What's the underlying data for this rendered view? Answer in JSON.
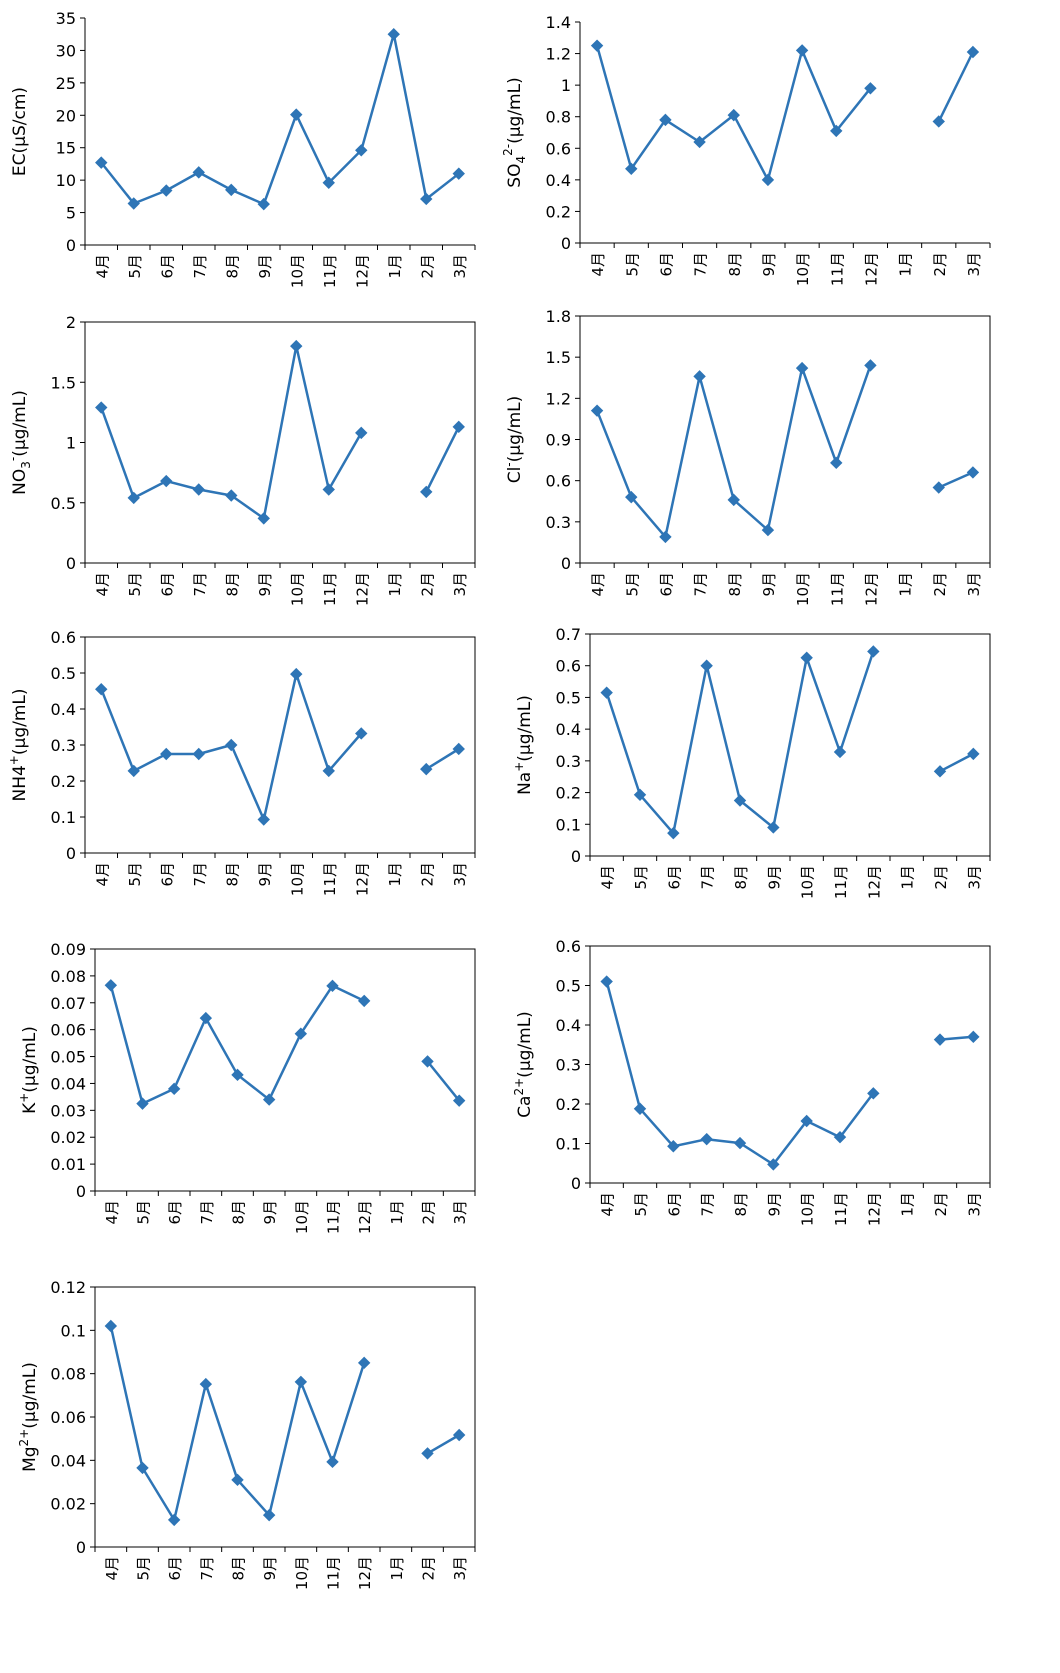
{
  "months": [
    "4月",
    "5月",
    "6月",
    "7月",
    "8月",
    "9月",
    "10月",
    "11月",
    "12月",
    "1月",
    "2月",
    "3月"
  ],
  "colors": {
    "series": "#2e75b6"
  },
  "chart_data": [
    {
      "id": "ec",
      "type": "line",
      "ylabel": {
        "main": "EC(μS/cm)",
        "sup": "",
        "sub": "",
        "tail": ""
      },
      "ylim": [
        0,
        35
      ],
      "yticks": [
        0,
        5,
        10,
        15,
        20,
        25,
        30,
        35
      ],
      "ytick_labels": [
        "0",
        "5",
        "10",
        "15",
        "20",
        "25",
        "30",
        "35"
      ],
      "frame": false,
      "values": [
        12.7,
        6.4,
        8.4,
        11.2,
        8.5,
        6.3,
        20.1,
        9.6,
        14.6,
        32.5,
        7.1,
        11.0
      ]
    },
    {
      "id": "so4",
      "type": "line",
      "ylabel": {
        "main": "SO",
        "sub": "4",
        "sup": "2-",
        "tail": "(μg/mL)"
      },
      "ylim": [
        0,
        1.4
      ],
      "yticks": [
        0,
        0.2,
        0.4,
        0.6,
        0.8,
        1,
        1.2,
        1.4
      ],
      "ytick_labels": [
        "0",
        "0.2",
        "0.4",
        "0.6",
        "0.8",
        "1",
        "1.2",
        "1.4"
      ],
      "frame": false,
      "values": [
        1.25,
        0.47,
        0.78,
        0.64,
        0.81,
        0.4,
        1.22,
        0.71,
        0.98,
        null,
        0.77,
        1.21
      ]
    },
    {
      "id": "no3",
      "type": "line",
      "ylabel": {
        "main": "NO",
        "sub": "3",
        "sup": "-",
        "tail": "(μg/mL)"
      },
      "ylim": [
        0,
        2
      ],
      "yticks": [
        0,
        0.5,
        1,
        1.5,
        2
      ],
      "ytick_labels": [
        "0",
        "0.5",
        "1",
        "1.5",
        "2"
      ],
      "frame": true,
      "values": [
        1.29,
        0.54,
        0.68,
        0.61,
        0.56,
        0.37,
        1.8,
        0.61,
        1.08,
        null,
        0.59,
        1.13
      ]
    },
    {
      "id": "cl",
      "type": "line",
      "ylabel": {
        "main": "Cl",
        "sub": "",
        "sup": "-",
        "tail": "(μg/mL)"
      },
      "ylim": [
        0,
        1.8
      ],
      "yticks": [
        0,
        0.3,
        0.6,
        0.9,
        1.2,
        1.5,
        1.8
      ],
      "ytick_labels": [
        "0",
        "0.3",
        "0.6",
        "0.9",
        "1.2",
        "1.5",
        "1.8"
      ],
      "frame": true,
      "values": [
        1.11,
        0.48,
        0.19,
        1.36,
        0.46,
        0.24,
        1.42,
        0.73,
        1.44,
        null,
        0.55,
        0.66
      ]
    },
    {
      "id": "nh4",
      "type": "line",
      "ylabel": {
        "main": "NH4",
        "sub": "",
        "sup": "+",
        "tail": "(μg/mL)"
      },
      "ylim": [
        0,
        0.6
      ],
      "yticks": [
        0,
        0.1,
        0.2,
        0.3,
        0.4,
        0.5,
        0.6
      ],
      "ytick_labels": [
        "0",
        "0.1",
        "0.2",
        "0.3",
        "0.4",
        "0.5",
        "0.6"
      ],
      "frame": true,
      "values": [
        0.455,
        0.228,
        0.275,
        0.275,
        0.3,
        0.093,
        0.497,
        0.228,
        0.332,
        null,
        0.233,
        0.289
      ]
    },
    {
      "id": "na",
      "type": "line",
      "ylabel": {
        "main": "Na",
        "sub": "",
        "sup": "+",
        "tail": "(μg/mL)"
      },
      "ylim": [
        0,
        0.7
      ],
      "yticks": [
        0,
        0.1,
        0.2,
        0.3,
        0.4,
        0.5,
        0.6,
        0.7
      ],
      "ytick_labels": [
        "0",
        "0.1",
        "0.2",
        "0.3",
        "0.4",
        "0.5",
        "0.6",
        "0.7"
      ],
      "frame": true,
      "values": [
        0.515,
        0.193,
        0.072,
        0.6,
        0.175,
        0.09,
        0.625,
        0.328,
        0.645,
        null,
        0.267,
        0.322
      ]
    },
    {
      "id": "k",
      "type": "line",
      "ylabel": {
        "main": "K",
        "sub": "",
        "sup": "+",
        "tail": "(μg/mL)"
      },
      "ylim": [
        0,
        0.09
      ],
      "yticks": [
        0,
        0.01,
        0.02,
        0.03,
        0.04,
        0.05,
        0.06,
        0.07,
        0.08,
        0.09
      ],
      "ytick_labels": [
        "0",
        "0.01",
        "0.02",
        "0.03",
        "0.04",
        "0.05",
        "0.06",
        "0.07",
        "0.08",
        "0.09"
      ],
      "frame": true,
      "values": [
        0.0765,
        0.0325,
        0.038,
        0.0643,
        0.0432,
        0.034,
        0.0585,
        0.0763,
        0.0707,
        null,
        0.0482,
        0.0336
      ]
    },
    {
      "id": "ca",
      "type": "line",
      "ylabel": {
        "main": "Ca",
        "sub": "",
        "sup": "2+",
        "tail": "(μg/mL)"
      },
      "ylim": [
        0,
        0.6
      ],
      "yticks": [
        0,
        0.1,
        0.2,
        0.3,
        0.4,
        0.5,
        0.6
      ],
      "ytick_labels": [
        "0",
        "0.1",
        "0.2",
        "0.3",
        "0.4",
        "0.5",
        "0.6"
      ],
      "frame": true,
      "values": [
        0.51,
        0.188,
        0.093,
        0.111,
        0.101,
        0.047,
        0.157,
        0.116,
        0.227,
        null,
        0.363,
        0.37
      ]
    },
    {
      "id": "mg",
      "type": "line",
      "ylabel": {
        "main": "Mg",
        "sub": "",
        "sup": "2+",
        "tail": "(μg/mL)"
      },
      "ylim": [
        0,
        0.12
      ],
      "yticks": [
        0,
        0.02,
        0.04,
        0.06,
        0.08,
        0.1,
        0.12
      ],
      "ytick_labels": [
        "0",
        "0.02",
        "0.04",
        "0.06",
        "0.08",
        "0.1",
        "0.12"
      ],
      "frame": true,
      "values": [
        0.102,
        0.0365,
        0.0125,
        0.0752,
        0.031,
        0.0147,
        0.0762,
        0.0393,
        0.085,
        null,
        0.0432,
        0.0517
      ]
    }
  ]
}
